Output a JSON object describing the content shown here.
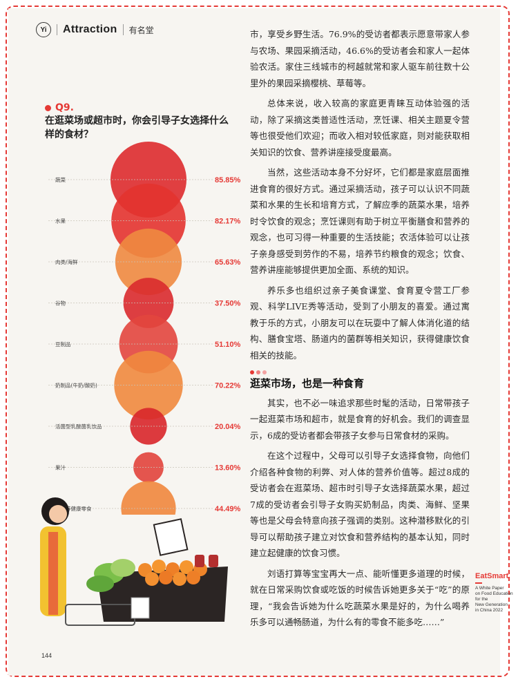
{
  "header": {
    "logo": "Yi",
    "brand": "Attraction",
    "section": "有名堂"
  },
  "question": {
    "number": "Q9.",
    "title_line1": "在逛菜场或超市时，你会引导子女选择什么",
    "title_line2": "样的食材？"
  },
  "chart_data": {
    "type": "bubble",
    "title": "在逛菜场或超市时，你会引导子女选择什么样的食材？",
    "categories": [
      "蔬菜",
      "水果",
      "肉类/海鲜",
      "谷物",
      "豆制品",
      "奶制品(牛奶/酸奶)",
      "活菌型乳酸菌乳饮品",
      "果汁",
      "坚果等健康零食"
    ],
    "values": [
      85.85,
      82.17,
      65.63,
      37.5,
      51.1,
      70.22,
      20.04,
      13.6,
      44.49
    ],
    "value_labels": [
      "85.85%",
      "82.17%",
      "65.63%",
      "37.50%",
      "51.10%",
      "70.22%",
      "20.04%",
      "13.60%",
      "44.49%"
    ],
    "unit": "%",
    "colors": [
      "#dd2b2e",
      "#e3332f",
      "#ee8a40",
      "#d92a2d",
      "#e2463e",
      "#ef8a3e",
      "#d8262a",
      "#e1443c",
      "#ef873d"
    ]
  },
  "article": {
    "p1": "市，享受乡野生活。76.9%的受访者都表示愿意带家人参与农场、果园采摘活动，46.6%的受访者会和家人一起体验农活。家住三线城市的柯越就常和家人驱车前往数十公里外的果园采摘樱桃、草莓等。",
    "p2": "总体来说，收入较高的家庭更青睐互动体验强的活动，除了采摘这类普适性活动，烹饪课、相关主题夏令营等也很受他们欢迎；而收入相对较低家庭，则对能获取相关知识的饮食、营养讲座接受度最高。",
    "p3": "当然，这些活动本身不分好坏，它们都是家庭层面推进食育的很好方式。通过采摘活动，孩子可以认识不同蔬菜和水果的生长和培育方式，了解应季的蔬菜水果，培养时令饮食的观念；烹饪课则有助于树立平衡膳食和营养的观念，也可习得一种重要的生活技能；农活体验可以让孩子亲身感受到劳作的不易，培养节约粮食的观念；饮食、营养讲座能够提供更加全面、系统的知识。",
    "p4": "养乐多也组织过亲子美食课堂、食育夏令营工厂参观、科学LIVE秀等活动，受到了小朋友的喜爱。通过寓教于乐的方式，小朋友可以在玩耍中了解人体消化道的结构、膳食宝塔、肠道内的菌群等相关知识，获得健康饮食相关的技能。",
    "section_title": "逛菜市场，也是一种食育",
    "p5": "其实，也不必一味追求那些时髦的活动，日常带孩子一起逛菜市场和超市，就是食育的好机会。我们的调查显示，6成的受访者都会带孩子女参与日常食材的采购。",
    "p6": "在这个过程中，父母可以引导子女选择食物，向他们介绍各种食物的利弊、对人体的营养价值等。超过8成的受访者会在逛菜场、超市时引导子女选择蔬菜水果，超过7成的受访者会引导子女购买奶制品，肉类、海鲜、坚果等也是父母会特意向孩子强调的类别。这种潜移默化的引导可以帮助孩子建立对饮食和营养结构的基本认知，同时建立起健康的饮食习惯。",
    "p7": "刘语打算等宝宝再大一点、能听懂更多道理的时候，就在日常采购饮食或吃饭的时候告诉她更多关于“吃”的原理，“我会告诉她为什么吃蔬菜水果是好的，为什么喝养乐多可以通畅肠道，为什么有的零食不能多吃……”"
  },
  "sidebar": {
    "brand": "EatSmart",
    "line1": "A White Paper",
    "line2": "on Food Education",
    "line3": "for the",
    "line4": "New Generation",
    "line5": "in China 2022"
  },
  "page_number": "144"
}
